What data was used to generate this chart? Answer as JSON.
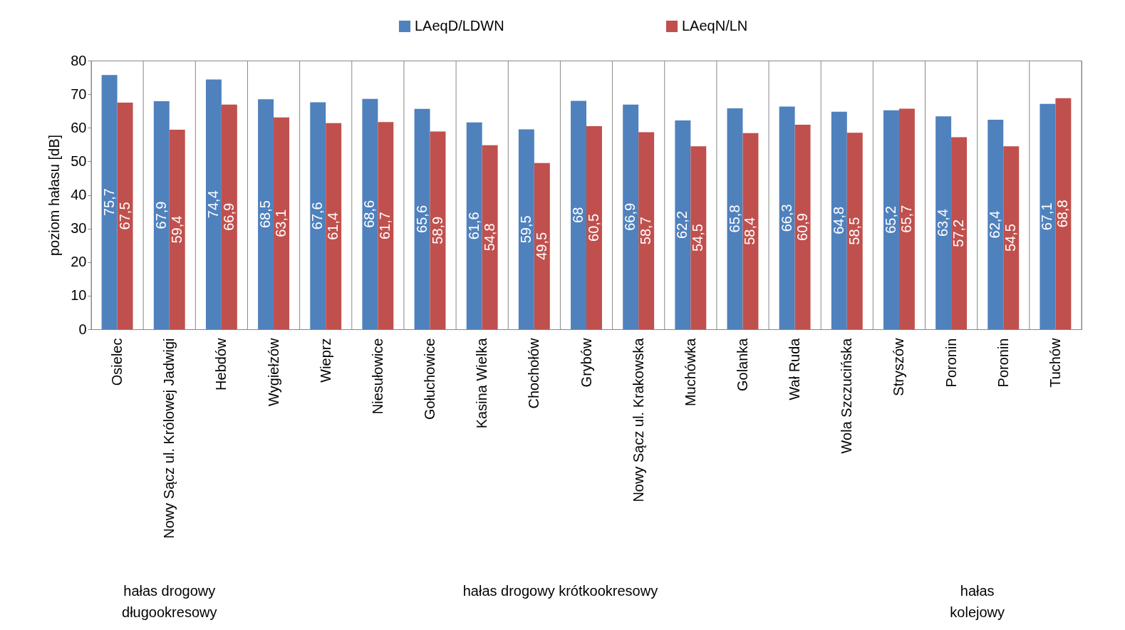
{
  "chart_data": {
    "type": "bar",
    "ylabel": "poziom hałasu [dB]",
    "categories": [
      "Osielec",
      "Nowy Sącz ul. Królowej Jadwigi",
      "Hebdów",
      "Wygiełzów",
      "Wieprz",
      "Niesułowice",
      "Gołuchowice",
      "Kasina Wielka",
      "Chochołów",
      "Grybów",
      "Nowy Sącz ul. Krakowska",
      "Muchówka",
      "Golanka",
      "Wał Ruda",
      "Wola Szczucińska",
      "Stryszów",
      "Poronin",
      "Poronin",
      "Tuchów"
    ],
    "series": [
      {
        "name": "LAeqD/LDWN",
        "color": "#4f81bd",
        "values": [
          75.7,
          67.9,
          74.4,
          68.5,
          67.6,
          68.6,
          65.6,
          61.6,
          59.5,
          68,
          66.9,
          62.2,
          65.8,
          66.3,
          64.8,
          65.2,
          63.4,
          62.4,
          67.1
        ],
        "value_labels": [
          "75,7",
          "67,9",
          "74,4",
          "68,5",
          "67,6",
          "68,6",
          "65,6",
          "61,6",
          "59,5",
          "68",
          "66,9",
          "62,2",
          "65,8",
          "66,3",
          "64,8",
          "65,2",
          "63,4",
          "62,4",
          "67,1"
        ]
      },
      {
        "name": "LAeqN/LN",
        "color": "#c0504d",
        "values": [
          67.5,
          59.4,
          66.9,
          63.1,
          61.4,
          61.7,
          58.9,
          54.8,
          49.5,
          60.5,
          58.7,
          54.5,
          58.4,
          60.9,
          58.5,
          65.7,
          57.2,
          54.5,
          68.8
        ],
        "value_labels": [
          "67,5",
          "59,4",
          "66,9",
          "63,1",
          "61,4",
          "61,7",
          "58,9",
          "54,8",
          "49,5",
          "60,5",
          "58,7",
          "54,5",
          "58,4",
          "60,9",
          "58,5",
          "65,7",
          "57,2",
          "54,5",
          "68,8"
        ]
      }
    ],
    "ylim": [
      0,
      80
    ],
    "yticks": [
      0,
      10,
      20,
      30,
      40,
      50,
      60,
      70,
      80
    ],
    "grid": false,
    "legend": "top",
    "annotations": [
      "hałas drogowy długookresowy",
      "hałas drogowy krótkookresowy",
      "hałas kolejowy"
    ]
  }
}
